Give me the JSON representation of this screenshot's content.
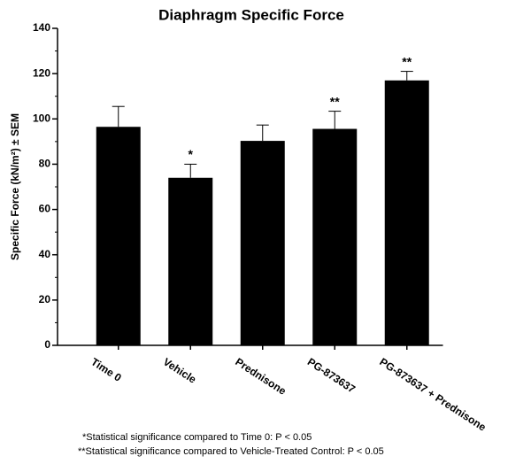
{
  "chart_data": {
    "type": "bar",
    "title": "Diaphragm Specific Force",
    "y_label": "Specific Force (kN/m²) ± SEM",
    "categories": [
      "Time 0",
      "Vehicle",
      "Prednisone",
      "PG-873637",
      "PG-873637 + Prednisone"
    ],
    "values": [
      96.5,
      74,
      90.3,
      95.6,
      117
    ],
    "errors": [
      9,
      6,
      7,
      7.8,
      4
    ],
    "annotations": [
      null,
      "*",
      null,
      "**",
      "**"
    ],
    "color": "#000000",
    "ylim": [
      0,
      140
    ],
    "yticks": [
      0,
      20,
      40,
      60,
      80,
      100,
      120,
      140
    ],
    "footnotes": [
      "*Statistical significance compared to Time 0: P < 0.05",
      "**Statistical significance compared to Vehicle-Treated Control: P < 0.05"
    ]
  }
}
